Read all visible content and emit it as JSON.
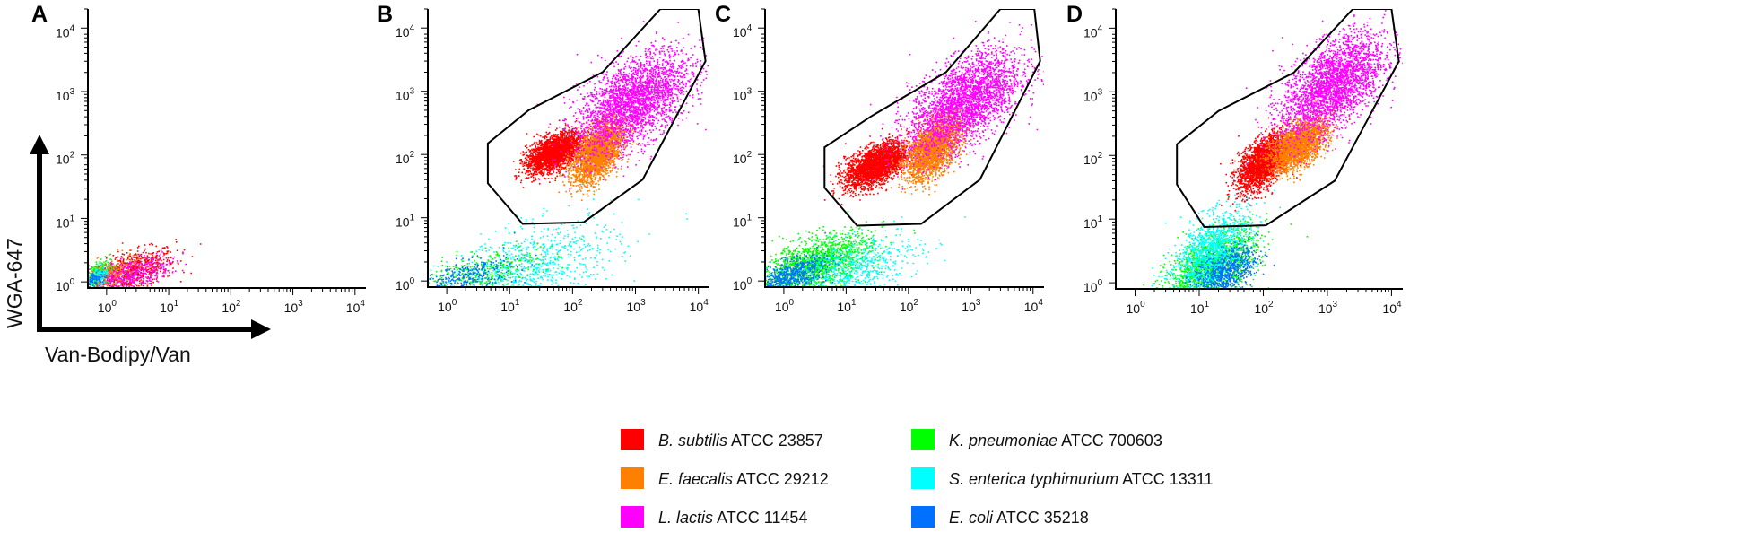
{
  "chart_data": [
    {
      "type": "scatter",
      "panel": "A",
      "scale": "log-log",
      "xlim": [
        0.5,
        15000
      ],
      "ylim": [
        0.8,
        20000
      ],
      "xticks": [
        1,
        10,
        100,
        1000,
        10000
      ],
      "yticks": [
        1,
        10,
        100,
        1000,
        10000
      ],
      "gate": null,
      "clusters": [
        {
          "series": "B. subtilis",
          "center": [
            2.5,
            1.5
          ],
          "spread": [
            0.35,
            0.18
          ],
          "count": 700
        },
        {
          "series": "L. lactis",
          "center": [
            2.0,
            1.3
          ],
          "spread": [
            0.35,
            0.14
          ],
          "count": 500
        },
        {
          "series": "E. faecalis",
          "center": [
            0.9,
            1.3
          ],
          "spread": [
            0.25,
            0.14
          ],
          "count": 250
        },
        {
          "series": "K. pneumoniae",
          "center": [
            0.65,
            1.3
          ],
          "spread": [
            0.12,
            0.12
          ],
          "count": 180
        },
        {
          "series": "S. enterica",
          "center": [
            0.65,
            1.2
          ],
          "spread": [
            0.1,
            0.1
          ],
          "count": 120
        },
        {
          "series": "E. coli",
          "center": [
            0.65,
            1.1
          ],
          "spread": [
            0.1,
            0.08
          ],
          "count": 100
        }
      ]
    },
    {
      "type": "scatter",
      "panel": "B",
      "scale": "log-log",
      "xlim": [
        0.5,
        15000
      ],
      "ylim": [
        0.8,
        20000
      ],
      "xticks": [
        1,
        10,
        100,
        1000,
        10000
      ],
      "yticks": [
        1,
        10,
        100,
        1000,
        10000
      ],
      "gate": [
        [
          4.5,
          150
        ],
        [
          4.5,
          35
        ],
        [
          16,
          8
        ],
        [
          150,
          8.5
        ],
        [
          1300,
          40
        ],
        [
          13000,
          3000
        ],
        [
          10000,
          20000
        ],
        [
          2500,
          20000
        ],
        [
          300,
          2000
        ],
        [
          20,
          500
        ]
      ],
      "clusters": [
        {
          "series": "B. subtilis",
          "center": [
            50,
            110
          ],
          "spread": [
            0.22,
            0.16
          ],
          "count": 2600
        },
        {
          "series": "E. faecalis",
          "center": [
            250,
            110
          ],
          "spread": [
            0.2,
            0.25
          ],
          "count": 2400
        },
        {
          "series": "L. lactis",
          "center": [
            900,
            700
          ],
          "spread": [
            0.45,
            0.4
          ],
          "count": 2800
        },
        {
          "series": "S. enterica",
          "center": [
            20,
            1.5
          ],
          "spread": [
            0.7,
            0.4
          ],
          "count": 900
        },
        {
          "series": "K. pneumoniae",
          "center": [
            3,
            1.3
          ],
          "spread": [
            0.5,
            0.2
          ],
          "count": 400
        },
        {
          "series": "E. coli",
          "center": [
            2,
            1.2
          ],
          "spread": [
            0.4,
            0.15
          ],
          "count": 300
        }
      ]
    },
    {
      "type": "scatter",
      "panel": "C",
      "scale": "log-log",
      "xlim": [
        0.5,
        15000
      ],
      "ylim": [
        0.8,
        20000
      ],
      "xticks": [
        1,
        10,
        100,
        1000,
        10000
      ],
      "yticks": [
        1,
        10,
        100,
        1000,
        10000
      ],
      "gate": [
        [
          4.5,
          130
        ],
        [
          4.5,
          30
        ],
        [
          15,
          7.5
        ],
        [
          160,
          8
        ],
        [
          1400,
          40
        ],
        [
          13000,
          3000
        ],
        [
          10500,
          20000
        ],
        [
          3000,
          20000
        ],
        [
          400,
          2000
        ],
        [
          25,
          400
        ]
      ],
      "clusters": [
        {
          "series": "B. subtilis",
          "center": [
            30,
            70
          ],
          "spread": [
            0.25,
            0.18
          ],
          "count": 2600
        },
        {
          "series": "E. faecalis",
          "center": [
            250,
            130
          ],
          "spread": [
            0.22,
            0.25
          ],
          "count": 2400
        },
        {
          "series": "L. lactis",
          "center": [
            800,
            700
          ],
          "spread": [
            0.45,
            0.4
          ],
          "count": 2800
        },
        {
          "series": "K. pneumoniae",
          "center": [
            3,
            1.8
          ],
          "spread": [
            0.45,
            0.25
          ],
          "count": 1600
        },
        {
          "series": "S. enterica",
          "center": [
            12,
            1.5
          ],
          "spread": [
            0.55,
            0.3
          ],
          "count": 700
        },
        {
          "series": "E. coli",
          "center": [
            1.2,
            1.2
          ],
          "spread": [
            0.3,
            0.15
          ],
          "count": 600
        }
      ]
    },
    {
      "type": "scatter",
      "panel": "D",
      "scale": "log-log",
      "xlim": [
        0.5,
        15000
      ],
      "ylim": [
        0.8,
        20000
      ],
      "xticks": [
        1,
        10,
        100,
        1000,
        10000
      ],
      "yticks": [
        1,
        10,
        100,
        1000,
        10000
      ],
      "gate": [
        [
          4.5,
          150
        ],
        [
          4.5,
          35
        ],
        [
          12,
          7.5
        ],
        [
          110,
          8
        ],
        [
          1300,
          40
        ],
        [
          13000,
          3000
        ],
        [
          10000,
          20000
        ],
        [
          2500,
          20000
        ],
        [
          300,
          2000
        ],
        [
          20,
          500
        ]
      ],
      "clusters": [
        {
          "series": "B. subtilis",
          "center": [
            100,
            80
          ],
          "spread": [
            0.2,
            0.22
          ],
          "count": 2400
        },
        {
          "series": "E. faecalis",
          "center": [
            350,
            150
          ],
          "spread": [
            0.22,
            0.2
          ],
          "count": 2200
        },
        {
          "series": "L. lactis",
          "center": [
            1200,
            1300
          ],
          "spread": [
            0.4,
            0.4
          ],
          "count": 2800
        },
        {
          "series": "K. pneumoniae",
          "center": [
            15,
            1.8
          ],
          "spread": [
            0.35,
            0.3
          ],
          "count": 1600
        },
        {
          "series": "S. enterica",
          "center": [
            15,
            3
          ],
          "spread": [
            0.3,
            0.35
          ],
          "count": 1200
        },
        {
          "series": "E. coli",
          "center": [
            25,
            1.5
          ],
          "spread": [
            0.25,
            0.2
          ],
          "count": 700
        }
      ]
    }
  ],
  "panel_labels": [
    "A",
    "B",
    "C",
    "D"
  ],
  "axes": {
    "ylabel": "WGA-647",
    "xlabel": "Van-Bodipy/Van"
  },
  "legend": [
    {
      "species": "B. subtilis",
      "strain": "ATCC 23857",
      "color": "#ff0000"
    },
    {
      "species": "E. faecalis",
      "strain": "ATCC 29212",
      "color": "#ff8000"
    },
    {
      "species": "L. lactis",
      "strain": "ATCC 11454",
      "color": "#ff00ff"
    },
    {
      "species": "K. pneumoniae",
      "strain": "ATCC 700603",
      "color": "#00ff00"
    },
    {
      "species": "S. enterica typhimurium",
      "strain": "ATCC 13311",
      "color": "#00ffff"
    },
    {
      "species": "E. coli",
      "strain": "ATCC 35218",
      "color": "#0070ff"
    }
  ],
  "colors": {
    "gate": "#000000",
    "axis": "#000000",
    "background": "#ffffff"
  }
}
